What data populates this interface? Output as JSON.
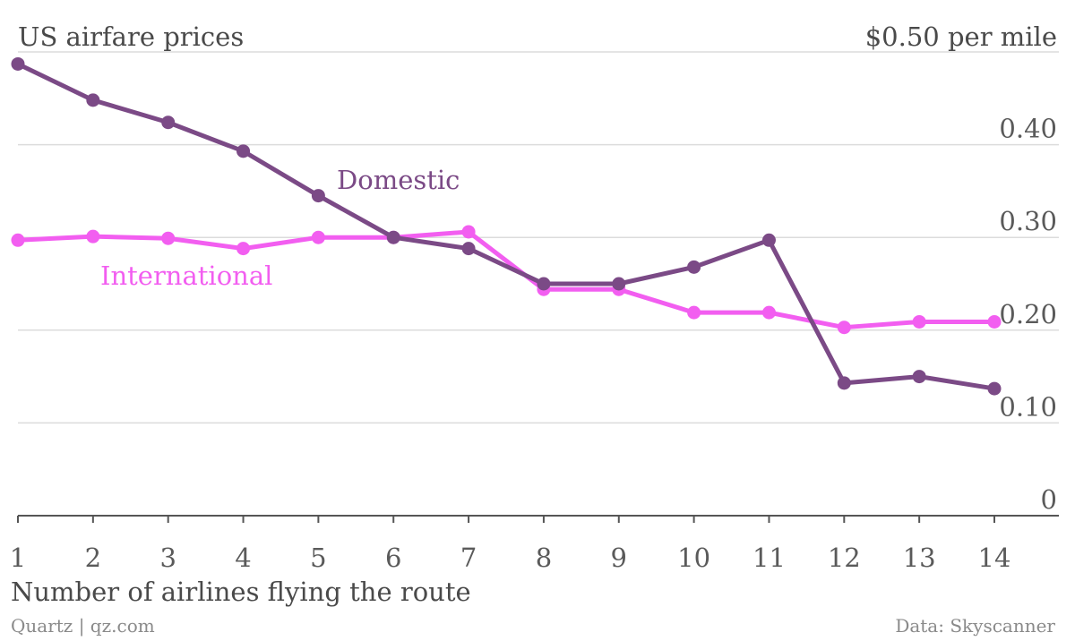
{
  "chart_data": {
    "type": "line",
    "title": "US airfare prices",
    "y_top_label": "$0.50 per mile",
    "xlabel": "Number of airlines flying the route",
    "x": [
      1,
      2,
      3,
      4,
      5,
      6,
      7,
      8,
      9,
      10,
      11,
      12,
      13,
      14
    ],
    "x_tick_labels": [
      "1",
      "2",
      "3",
      "4",
      "5",
      "6",
      "7",
      "8",
      "9",
      "10",
      "11",
      "12",
      "13",
      "14"
    ],
    "y_ticks": [
      0,
      0.1,
      0.2,
      0.3,
      0.4,
      0.5
    ],
    "y_tick_labels": [
      "0",
      "0.10",
      "0.20",
      "0.30",
      "0.40",
      "$0.50 per mile"
    ],
    "ylim": [
      0,
      0.5
    ],
    "grid": true,
    "series": [
      {
        "name": "Domestic",
        "color": "#7b4a86",
        "values": [
          0.487,
          0.448,
          0.424,
          0.393,
          0.345,
          0.3,
          0.288,
          0.25,
          0.25,
          0.268,
          0.297,
          0.143,
          0.15,
          0.137
        ]
      },
      {
        "name": "International",
        "color": "#f25ef0",
        "values": [
          0.297,
          0.301,
          0.299,
          0.288,
          0.3,
          0.3,
          0.306,
          0.244,
          0.244,
          0.219,
          0.219,
          0.203,
          0.209,
          0.209
        ]
      }
    ],
    "source_left": "Quartz | qz.com",
    "source_right": "Data: Skyscanner"
  }
}
